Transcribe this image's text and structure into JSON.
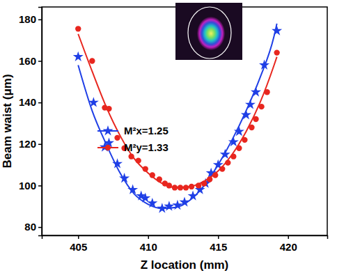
{
  "chart_data": {
    "type": "scatter",
    "x_label": "Z location (mm)",
    "y_label": "Beam waist (μm)",
    "xlim": [
      402.4,
      422.8
    ],
    "xticks": [
      405,
      410,
      415,
      420
    ],
    "ylim": [
      76,
      186
    ],
    "yticks": [
      80,
      100,
      120,
      140,
      160,
      180
    ],
    "legend": "center",
    "grid": false,
    "series": [
      {
        "name": "M²x=1.25",
        "color": "#1f3fe6",
        "marker": "star",
        "x": [
          405.0,
          406.1,
          406.9,
          407.2,
          407.8,
          408.3,
          408.9,
          409.5,
          409.8,
          410.3,
          411.0,
          411.5,
          412.1,
          412.6,
          413.2,
          413.7,
          414.1,
          414.5,
          415.0,
          415.5,
          416.1,
          416.5,
          417.0,
          417.3,
          417.7,
          418.3,
          419.2
        ],
        "values": [
          162,
          140,
          118.5,
          120.5,
          110.5,
          103.5,
          98,
          95,
          94,
          91.5,
          89,
          90,
          90.5,
          92,
          95,
          98,
          101,
          106,
          110,
          115,
          121,
          126,
          134,
          139,
          145,
          158,
          174.5
        ],
        "fit": {
          "x": [
            405,
            406,
            407,
            408,
            409,
            410,
            411,
            412,
            413,
            414,
            415,
            416,
            417,
            418,
            419,
            419.2
          ],
          "values": [
            158,
            136,
            120,
            106,
            96,
            91,
            89,
            89.5,
            93,
            100,
            110,
            122,
            136,
            152,
            172,
            178
          ]
        }
      },
      {
        "name": "M²y=1.33",
        "color": "#e8261e",
        "marker": "circle",
        "x": [
          405.0,
          406.0,
          406.9,
          407.2,
          407.8,
          408.3,
          408.8,
          409.3,
          409.8,
          410.3,
          410.8,
          411.2,
          411.5,
          411.9,
          412.3,
          412.7,
          413.1,
          413.6,
          414.0,
          414.4,
          414.8,
          415.3,
          415.7,
          416.1,
          416.5,
          416.9,
          417.4,
          417.7,
          418.1,
          418.5,
          419.2
        ],
        "values": [
          175.5,
          160,
          137.5,
          137,
          123,
          118,
          114,
          112,
          108,
          105,
          103,
          101,
          100,
          99,
          99,
          99,
          99.5,
          100,
          101,
          103,
          105,
          108,
          111,
          114,
          118,
          122,
          128,
          132,
          138,
          145,
          164
        ],
        "fit": {
          "x": [
            405,
            406,
            407,
            408,
            409,
            410,
            411,
            412,
            413,
            414,
            415,
            416,
            417,
            418,
            419,
            419.2
          ],
          "values": [
            173,
            155,
            138,
            124,
            113,
            106,
            101,
            99,
            99.5,
            102,
            107,
            115,
            126,
            140,
            158,
            162
          ]
        }
      }
    ]
  }
}
